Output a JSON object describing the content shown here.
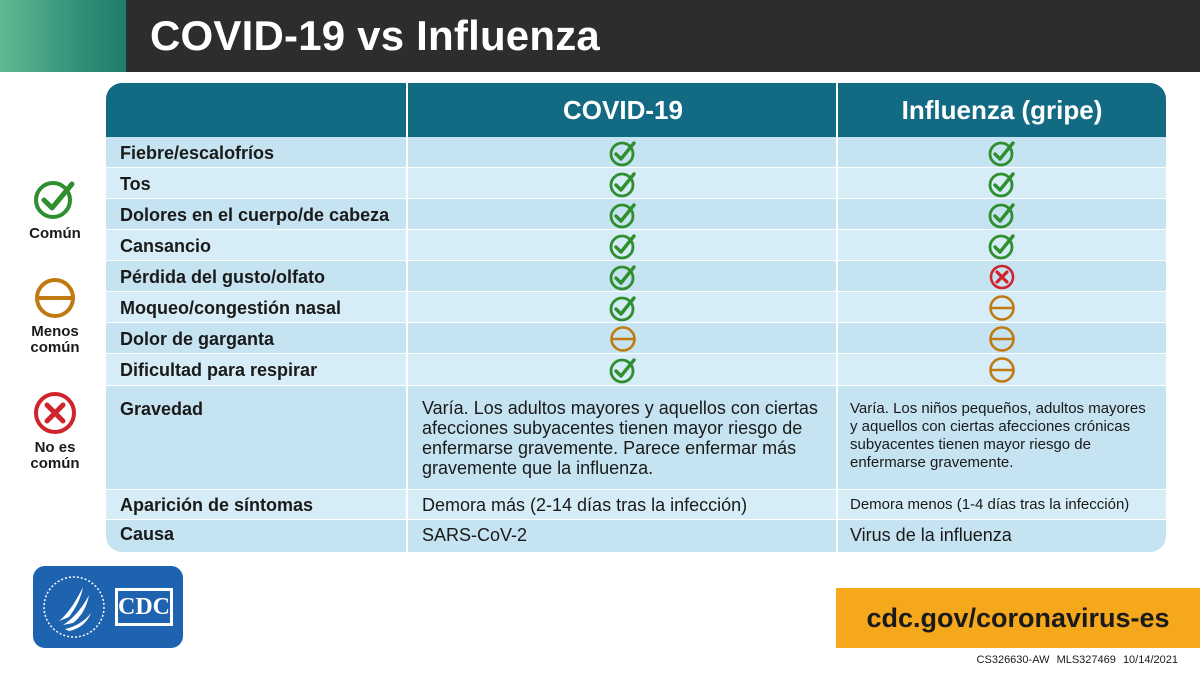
{
  "header": {
    "title": "COVID-19 vs Influenza"
  },
  "legend": [
    {
      "label": "Común",
      "icon": "check-circle-icon",
      "color": "#2f8f2f"
    },
    {
      "label": "Menos\ncomún",
      "icon": "minus-circle-icon",
      "color": "#c07a10"
    },
    {
      "label": "No es\ncomún",
      "icon": "x-circle-icon",
      "color": "#d0242c"
    }
  ],
  "table": {
    "columns": [
      "",
      "COVID-19",
      "Influenza (gripe)"
    ],
    "symptoms": [
      {
        "label": "Fiebre/escalofríos",
        "covid": "common",
        "flu": "common"
      },
      {
        "label": "Tos",
        "covid": "common",
        "flu": "common"
      },
      {
        "label": "Dolores en el cuerpo/de cabeza",
        "covid": "common",
        "flu": "common"
      },
      {
        "label": "Cansancio",
        "covid": "common",
        "flu": "common"
      },
      {
        "label": "Pérdida del gusto/olfato",
        "covid": "common",
        "flu": "not-common"
      },
      {
        "label": "Moqueo/congestión nasal",
        "covid": "common",
        "flu": "less-common"
      },
      {
        "label": "Dolor de garganta",
        "covid": "less-common",
        "flu": "less-common"
      },
      {
        "label": "Dificultad para respirar",
        "covid": "common",
        "flu": "less-common"
      }
    ],
    "severity": {
      "label": "Gravedad",
      "covid": "Varía. Los adultos mayores y aquellos con ciertas afecciones subyacentes tienen mayor riesgo de enfermarse gravemente. Parece enfermar más gravemente que la influenza.",
      "flu": "Varía. Los niños pequeños, adultos mayores y aquellos con ciertas afecciones crónicas subyacentes tienen mayor riesgo de enfermarse gravemente."
    },
    "onset": {
      "label": "Aparición de síntomas",
      "covid": "Demora más (2-14 días tras la infección)",
      "flu": "Demora menos (1-4 días tras la infección)"
    },
    "cause": {
      "label": "Causa",
      "covid": "SARS-CoV-2",
      "flu": "Virus de la influenza"
    }
  },
  "footer": {
    "logo_text": "CDC",
    "url": "cdc.gov/coronavirus-es",
    "fine_print": "CS326630-AW   MLS327469   10/14/2021"
  },
  "colors": {
    "header_bg": "#2d2d2d",
    "table_header": "#136b83",
    "row_light": "#d6ecf6",
    "row_dark": "#c5e3f1",
    "check": "#2f8f2f",
    "minus": "#c07a10",
    "x": "#d0242c",
    "url_bg": "#f6a81c",
    "cdc_blue": "#1e63b0"
  }
}
